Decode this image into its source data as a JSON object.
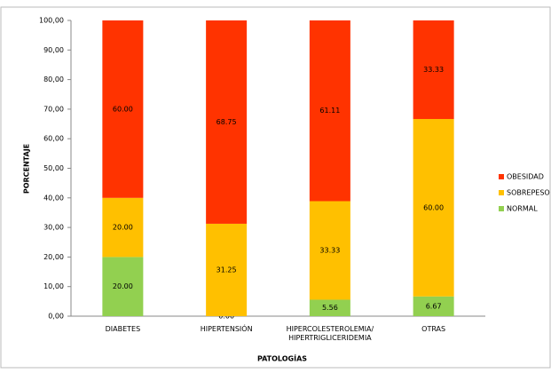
{
  "chart_data": {
    "type": "stacked_bar",
    "x_label": "PATOLOGÍAS",
    "y_label": "PORCENTAJE",
    "categories": [
      "DIABETES",
      "HIPERTENSIÓN",
      "HIPERCOLESTEROLEMIA/\nHIPERTRIGLICERIDEMIA",
      "OTRAS"
    ],
    "series": [
      {
        "name": "NORMAL",
        "color": "#92d050",
        "values": [
          20,
          0,
          5.56,
          6.67
        ],
        "value_labels": [
          "20.00",
          "0.00",
          "5.56",
          "6.67"
        ]
      },
      {
        "name": "SOBREPESO",
        "color": "#ffc000",
        "values": [
          20,
          31.25,
          33.33,
          60
        ],
        "value_labels": [
          "20.00",
          "31.25",
          "33.33",
          "60.00"
        ]
      },
      {
        "name": "OBESIDAD",
        "color": "#ff3300",
        "values": [
          60,
          68.75,
          61.11,
          33.33
        ],
        "value_labels": [
          "60.00",
          "68.75",
          "61.11",
          "33.33"
        ]
      }
    ],
    "ylim": [
      0,
      100
    ],
    "yticks": [
      {
        "value": 0,
        "label": "0,00"
      },
      {
        "value": 10,
        "label": "10,00"
      },
      {
        "value": 20,
        "label": "20,00"
      },
      {
        "value": 30,
        "label": "30,00"
      },
      {
        "value": 40,
        "label": "40,00"
      },
      {
        "value": 50,
        "label": "50,00"
      },
      {
        "value": 60,
        "label": "60,00"
      },
      {
        "value": 70,
        "label": "70,00"
      },
      {
        "value": 80,
        "label": "80,00"
      },
      {
        "value": 90,
        "label": "90,00"
      },
      {
        "value": 100,
        "label": "100,00"
      }
    ],
    "grid": false,
    "legend_position": "right"
  }
}
